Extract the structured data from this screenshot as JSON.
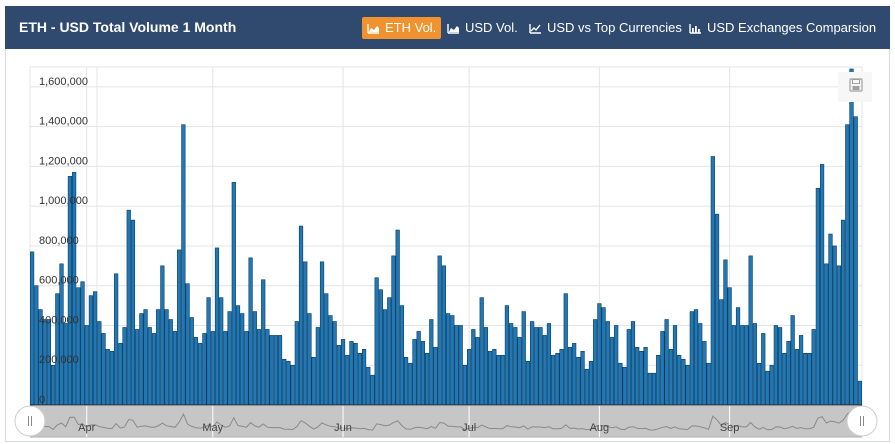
{
  "header": {
    "title": "ETH - USD Total Volume 1 Month",
    "tabs": [
      {
        "label": "ETH Vol.",
        "icon": "area-chart-icon",
        "active": true
      },
      {
        "label": "USD Vol.",
        "icon": "area-chart-icon",
        "active": false
      },
      {
        "label": "USD vs Top Currencies",
        "icon": "line-chart-icon",
        "active": false
      },
      {
        "label": "USD Exchanges Comparsion",
        "icon": "bar-chart-icon",
        "active": false
      }
    ]
  },
  "colors": {
    "header_bg": "#2f4a6e",
    "active_tab": "#f0922e",
    "bar": "#2278b5",
    "bar_edge": "#0b3c5e",
    "grid": "#e4e4e4"
  },
  "export_icon": "save-icon",
  "chart_data": {
    "type": "bar",
    "title": "",
    "xlabel": "",
    "ylabel": "",
    "ylim": [
      0,
      1700000
    ],
    "yticks": [
      0,
      200000,
      400000,
      600000,
      800000,
      1000000,
      1200000,
      1400000,
      1600000
    ],
    "ytick_labels": [
      "0",
      "200,000",
      "400,000",
      "600,000",
      "800,000",
      "1,000,000",
      "1,200,000",
      "1,400,000",
      "1,600,000"
    ],
    "xtick_labels": [
      {
        "label": "Apr",
        "index": 13
      },
      {
        "label": "May",
        "index": 43
      },
      {
        "label": "Jun",
        "index": 74
      },
      {
        "label": "Jul",
        "index": 104
      },
      {
        "label": "Aug",
        "index": 135
      },
      {
        "label": "Sep",
        "index": 166
      }
    ],
    "values": [
      770000,
      600000,
      480000,
      430000,
      430000,
      200000,
      560000,
      710000,
      410000,
      1150000,
      1170000,
      590000,
      620000,
      400000,
      550000,
      570000,
      420000,
      360000,
      280000,
      270000,
      660000,
      310000,
      390000,
      980000,
      930000,
      380000,
      460000,
      480000,
      390000,
      360000,
      480000,
      700000,
      480000,
      430000,
      370000,
      780000,
      1410000,
      610000,
      440000,
      340000,
      310000,
      360000,
      540000,
      370000,
      790000,
      540000,
      370000,
      470000,
      1120000,
      500000,
      460000,
      370000,
      740000,
      470000,
      380000,
      630000,
      380000,
      350000,
      350000,
      350000,
      230000,
      220000,
      200000,
      420000,
      900000,
      720000,
      460000,
      240000,
      390000,
      720000,
      560000,
      450000,
      420000,
      300000,
      330000,
      250000,
      320000,
      310000,
      260000,
      280000,
      190000,
      150000,
      640000,
      580000,
      480000,
      540000,
      750000,
      880000,
      500000,
      240000,
      210000,
      330000,
      370000,
      320000,
      260000,
      430000,
      290000,
      750000,
      700000,
      460000,
      450000,
      400000,
      400000,
      200000,
      280000,
      380000,
      340000,
      540000,
      390000,
      270000,
      280000,
      250000,
      250000,
      500000,
      410000,
      390000,
      340000,
      470000,
      220000,
      420000,
      390000,
      390000,
      350000,
      410000,
      250000,
      260000,
      280000,
      560000,
      290000,
      310000,
      240000,
      270000,
      180000,
      220000,
      430000,
      510000,
      490000,
      420000,
      340000,
      400000,
      210000,
      190000,
      380000,
      420000,
      290000,
      270000,
      290000,
      160000,
      160000,
      250000,
      370000,
      430000,
      280000,
      400000,
      250000,
      230000,
      200000,
      470000,
      480000,
      410000,
      320000,
      210000,
      1250000,
      960000,
      530000,
      730000,
      590000,
      400000,
      490000,
      400000,
      400000,
      750000,
      410000,
      210000,
      360000,
      170000,
      200000,
      400000,
      390000,
      260000,
      320000,
      450000,
      280000,
      350000,
      260000,
      260000,
      380000,
      1090000,
      1210000,
      710000,
      860000,
      800000,
      700000,
      930000,
      1410000,
      1690000,
      1450000,
      120000
    ]
  }
}
